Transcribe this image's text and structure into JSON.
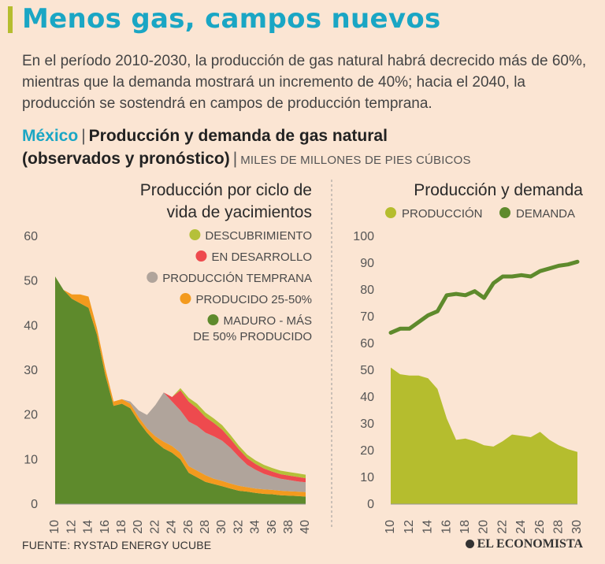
{
  "header": {
    "title": "Menos gas, campos nuevos",
    "intro": "En el período 2010-2030, la producción de gas natural habrá decrecido más de 60%, mientras que la demanda mostrará un incremento de 40%; hacia el 2040, la producción se sostendrá en campos de producción temprana.",
    "country": "México",
    "separator": "|",
    "subtitle_line1": "Producción y demanda de gas natural",
    "subtitle_line2": "(observados y pronóstico)",
    "units": "MILES DE MILLONES DE PIES CÚBICOS"
  },
  "footer": {
    "source": "FUENTE: RYSTAD ENERGY UCUBE",
    "brand": "EL ECONOMISTA"
  },
  "colors": {
    "maduro": "#5e8a2c",
    "producido": "#f39a1e",
    "temprana": "#b0a49b",
    "desarrollo": "#ee4a4e",
    "descubrimiento": "#b5c039",
    "produccion": "#b5bd2e",
    "demanda": "#5e8a2c"
  },
  "chart_data": [
    {
      "type": "area",
      "stacked": true,
      "title_lines": [
        "Producción por ciclo de",
        "vida de yacimientos"
      ],
      "x": [
        10,
        11,
        12,
        13,
        14,
        15,
        16,
        17,
        18,
        19,
        20,
        21,
        22,
        23,
        24,
        25,
        26,
        27,
        28,
        29,
        30,
        31,
        32,
        33,
        34,
        35,
        36,
        37,
        38,
        39,
        40
      ],
      "x_ticks": [
        "10",
        "12",
        "14",
        "16",
        "18",
        "20",
        "22",
        "24",
        "26",
        "28",
        "30",
        "32",
        "34",
        "36",
        "38",
        "40"
      ],
      "ylim": [
        0,
        60
      ],
      "y_ticks": [
        "0",
        "10",
        "20",
        "30",
        "40",
        "50",
        "60"
      ],
      "series": [
        {
          "key": "maduro",
          "name": "MADURO - MÁS DE 50% PRODUCIDO",
          "label_lines": [
            "MADURO - MÁS",
            "DE 50% PRODUCIDO"
          ],
          "values": [
            51,
            48,
            46,
            45,
            44,
            38,
            29,
            22,
            22.5,
            21.5,
            18.5,
            16,
            14,
            12.5,
            11.5,
            10,
            7,
            6,
            5,
            4.5,
            4,
            3.5,
            3,
            2.8,
            2.5,
            2.3,
            2.2,
            2.0,
            1.9,
            1.8,
            1.7
          ]
        },
        {
          "key": "producido",
          "name": "PRODUCIDO 25-50%",
          "label_lines": [
            "PRODUCIDO 25-50%"
          ],
          "values": [
            0,
            0,
            1,
            2,
            2.5,
            1.5,
            1.5,
            1,
            1,
            1,
            1,
            1,
            1.2,
            1.5,
            1.5,
            1.5,
            1.5,
            1.5,
            1.5,
            1.2,
            1.2,
            1.1,
            1.1,
            1,
            1,
            1,
            1,
            1,
            1,
            1,
            1
          ]
        },
        {
          "key": "temprana",
          "name": "PRODUCCIÓN TEMPRANA",
          "label_lines": [
            "PRODUCCIÓN TEMPRANA"
          ],
          "values": [
            0,
            0,
            0,
            0,
            0,
            0,
            0,
            0,
            0,
            0.5,
            1.5,
            3,
            7,
            11,
            10,
            9.5,
            10,
            10,
            9.5,
            9.5,
            9,
            8,
            6.5,
            5,
            4.2,
            3.5,
            3,
            2.7,
            2.5,
            2.3,
            2.2
          ]
        },
        {
          "key": "desarrollo",
          "name": "EN DESARROLLO",
          "label_lines": [
            "EN DESARROLLO"
          ],
          "values": [
            0,
            0,
            0,
            0,
            0,
            0,
            0,
            0,
            0,
            0,
            0,
            0,
            0,
            0,
            1,
            4.5,
            4.5,
            4,
            3.5,
            3,
            2.5,
            2,
            1.7,
            1.5,
            1.3,
            1.2,
            1.1,
            1,
            1,
            1,
            0.9
          ]
        },
        {
          "key": "descubrimiento",
          "name": "DESCUBRIMIENTO",
          "label_lines": [
            "DESCUBRIMIENTO"
          ],
          "values": [
            0,
            0,
            0,
            0,
            0,
            0,
            0,
            0,
            0,
            0,
            0,
            0,
            0,
            0,
            0,
            0.5,
            0.8,
            1,
            1,
            1,
            1,
            0.9,
            0.8,
            0.8,
            0.8,
            0.8,
            0.8,
            0.8,
            0.8,
            0.8,
            0.8
          ]
        }
      ]
    },
    {
      "type": "line",
      "title": "Producción y demanda",
      "x": [
        10,
        11,
        12,
        13,
        14,
        15,
        16,
        17,
        18,
        19,
        20,
        21,
        22,
        23,
        24,
        25,
        26,
        27,
        28,
        29,
        30
      ],
      "x_ticks": [
        "10",
        "12",
        "14",
        "16",
        "18",
        "20",
        "22",
        "24",
        "26",
        "28",
        "30"
      ],
      "ylim": [
        0,
        100
      ],
      "y_ticks": [
        "0",
        "10",
        "20",
        "30",
        "40",
        "50",
        "60",
        "70",
        "80",
        "90",
        "100"
      ],
      "series": [
        {
          "key": "produccion",
          "name": "PRODUCCIÓN",
          "style": "area",
          "values": [
            51,
            48.5,
            48,
            48,
            47,
            43,
            32,
            24,
            24.5,
            23.5,
            22,
            21.5,
            23.5,
            26,
            25.5,
            25,
            27,
            24,
            22,
            20.5,
            19.5
          ]
        },
        {
          "key": "demanda",
          "name": "DEMANDA",
          "style": "line",
          "values": [
            64,
            65.5,
            65.5,
            68,
            70.5,
            72,
            78,
            78.5,
            78,
            79.5,
            77,
            82.5,
            85,
            85,
            85.5,
            85,
            87,
            88,
            89,
            89.5,
            90.5
          ]
        }
      ]
    }
  ]
}
